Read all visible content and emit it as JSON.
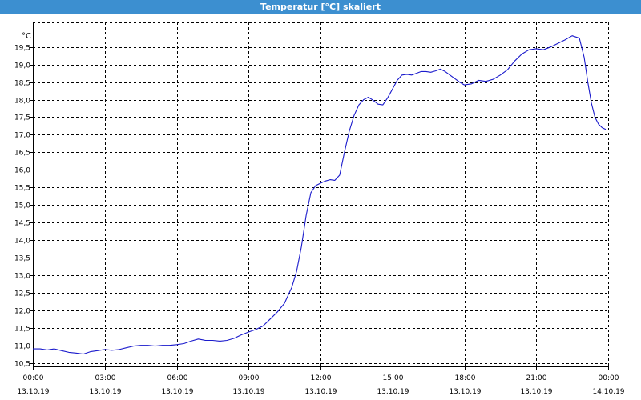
{
  "window": {
    "title": "Temperatur [°C] skaliert"
  },
  "colors": {
    "titlebar": "#3c8fd0",
    "series": "#1a1acc",
    "grid": "#000000"
  },
  "chart_data": {
    "type": "line",
    "title": "Temperatur [°C] skaliert",
    "ylabel": "°C",
    "xlabel": "",
    "ylim": [
      10.4,
      20.2
    ],
    "yticks": [
      10.5,
      11.0,
      11.5,
      12.0,
      12.5,
      13.0,
      13.5,
      14.0,
      14.5,
      15.0,
      15.5,
      16.0,
      16.5,
      17.0,
      17.5,
      18.0,
      18.5,
      19.0,
      19.5
    ],
    "ytick_labels": [
      "10,5",
      "11,0",
      "11,5",
      "12,0",
      "12,5",
      "13,0",
      "13,5",
      "14,0",
      "14,5",
      "15,0",
      "15,5",
      "16,0",
      "16,5",
      "17,0",
      "17,5",
      "18,0",
      "18,5",
      "19,0",
      "19,5"
    ],
    "xlim_hours": [
      0,
      24
    ],
    "xticks": [
      {
        "h": 0,
        "time": "00:00",
        "date": "13.10.19"
      },
      {
        "h": 3,
        "time": "03:00",
        "date": "13.10.19"
      },
      {
        "h": 6,
        "time": "06:00",
        "date": "13.10.19"
      },
      {
        "h": 9,
        "time": "09:00",
        "date": "13.10.19"
      },
      {
        "h": 12,
        "time": "12:00",
        "date": "13.10.19"
      },
      {
        "h": 15,
        "time": "15:00",
        "date": "13.10.19"
      },
      {
        "h": 18,
        "time": "18:00",
        "date": "13.10.19"
      },
      {
        "h": 21,
        "time": "21:00",
        "date": "13.10.19"
      },
      {
        "h": 24,
        "time": "00:00",
        "date": "14.10.19"
      }
    ],
    "grid": true,
    "series": [
      {
        "x": [
          0,
          0.3,
          0.6,
          0.9,
          1.2,
          1.5,
          1.8,
          2.1,
          2.4,
          2.7,
          3.0,
          3.3,
          3.6,
          3.9,
          4.2,
          4.5,
          4.8,
          5.1,
          5.4,
          5.7,
          6.0,
          6.3,
          6.6,
          6.9,
          7.2,
          7.5,
          7.8,
          8.1,
          8.4,
          8.7,
          9.0,
          9.3,
          9.6,
          9.9,
          10.2,
          10.5,
          10.8,
          11.0,
          11.2,
          11.4,
          11.6,
          11.8,
          12.0,
          12.2,
          12.4,
          12.6,
          12.8,
          13.0,
          13.2,
          13.4,
          13.6,
          13.8,
          14.0,
          14.2,
          14.4,
          14.6,
          14.8,
          15.0,
          15.2,
          15.4,
          15.6,
          15.8,
          16.0,
          16.2,
          16.4,
          16.6,
          16.8,
          17.0,
          17.2,
          17.4,
          17.6,
          17.8,
          18.0,
          18.3,
          18.6,
          18.9,
          19.2,
          19.5,
          19.8,
          20.1,
          20.4,
          20.7,
          21.0,
          21.3,
          21.6,
          21.9,
          22.2,
          22.5,
          22.8,
          23.0,
          23.15,
          23.3,
          23.45,
          23.6,
          23.75,
          23.9
        ],
        "y": [
          10.9,
          10.9,
          10.87,
          10.9,
          10.85,
          10.8,
          10.78,
          10.75,
          10.82,
          10.85,
          10.88,
          10.86,
          10.88,
          10.93,
          10.98,
          11.0,
          11.0,
          10.98,
          11.0,
          11.0,
          11.02,
          11.05,
          11.12,
          11.18,
          11.14,
          11.14,
          11.12,
          11.14,
          11.2,
          11.3,
          11.38,
          11.45,
          11.55,
          11.75,
          11.95,
          12.2,
          12.65,
          13.1,
          13.8,
          14.7,
          15.35,
          15.55,
          15.62,
          15.68,
          15.72,
          15.7,
          15.85,
          16.5,
          17.1,
          17.55,
          17.85,
          18.0,
          18.07,
          17.98,
          17.87,
          17.85,
          18.05,
          18.3,
          18.55,
          18.7,
          18.72,
          18.7,
          18.75,
          18.8,
          18.8,
          18.78,
          18.82,
          18.87,
          18.8,
          18.7,
          18.6,
          18.5,
          18.42,
          18.45,
          18.55,
          18.52,
          18.58,
          18.7,
          18.85,
          19.1,
          19.3,
          19.42,
          19.45,
          19.42,
          19.5,
          19.6,
          19.7,
          19.82,
          19.75,
          19.2,
          18.5,
          17.9,
          17.5,
          17.3,
          17.2,
          17.15
        ]
      }
    ]
  }
}
